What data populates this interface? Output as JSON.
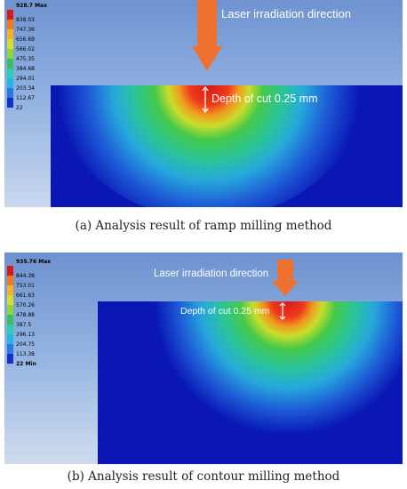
{
  "panel_a": {
    "legend": {
      "max_label": "928.7 Max",
      "values": [
        "838.03",
        "747.36",
        "656.69",
        "566.02",
        "475.35",
        "384.68",
        "294.01",
        "203.34",
        "112.67"
      ],
      "min_label": "22",
      "colors": [
        "#d61a1a",
        "#f07a1c",
        "#f2b322",
        "#d6dd2a",
        "#8fd63a",
        "#35c25a",
        "#2ad0b0",
        "#27b7e6",
        "#2a78e6",
        "#1530c8"
      ]
    },
    "laser_label": "Laser irradiation direction",
    "depth_label": "Depth of cut 0.25 mm",
    "caption": "(a) Analysis result of ramp milling method"
  },
  "panel_b": {
    "legend": {
      "max_label": "935.76 Max",
      "values": [
        "844.38",
        "753.01",
        "661.63",
        "570.26",
        "478.88",
        "387.5",
        "296.13",
        "204.75",
        "113.38"
      ],
      "min_label": "22 Min",
      "colors": [
        "#d61a1a",
        "#f07a1c",
        "#f2b322",
        "#d6dd2a",
        "#8fd63a",
        "#35c25a",
        "#2ad0b0",
        "#27b7e6",
        "#2a78e6",
        "#1530c8"
      ]
    },
    "laser_label": "Laser irradiation direction",
    "depth_label": "Depth of cut 0.25 mm",
    "caption": "(b) Analysis result of contour milling method"
  },
  "colors": {
    "arrow": "#ee7130",
    "workpiece": "#0a17b5"
  }
}
